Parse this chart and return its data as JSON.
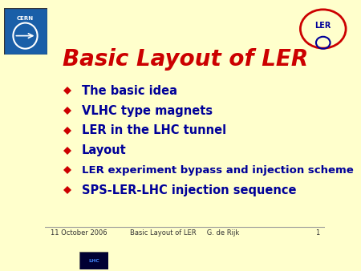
{
  "title": "Basic Layout of LER",
  "title_color": "#CC0000",
  "bg_color": "#FFFFCC",
  "bullet_color": "#CC0000",
  "text_color": "#000099",
  "bullet_items": [
    "The basic idea",
    "VLHC type magnets",
    "LER in the LHC tunnel",
    "Layout",
    "LER experiment bypass and injection scheme",
    "SPS-LER-LHC injection sequence"
  ],
  "footer_date": "11 October 2006",
  "footer_title": "Basic Layout of LER",
  "footer_author": "G. de Rijk",
  "footer_page": "1",
  "footer_color": "#333333"
}
